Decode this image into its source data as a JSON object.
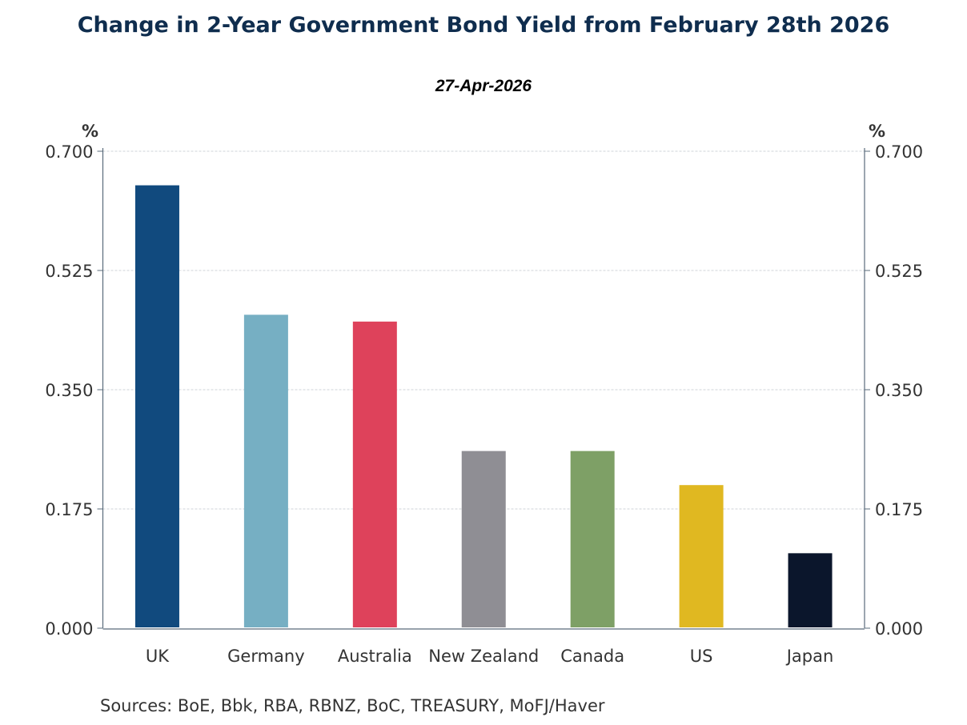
{
  "chart_data": {
    "type": "bar",
    "title": "Change in 2-Year Government Bond Yield from February 28th 2026",
    "subtitle": "27-Apr-2026",
    "ylabel_left": "%",
    "ylabel_right": "%",
    "xlabel": "",
    "ylim": [
      0,
      0.7
    ],
    "yticks": [
      "0.000",
      "0.175",
      "0.350",
      "0.525",
      "0.700"
    ],
    "grid": true,
    "categories": [
      "UK",
      "Germany",
      "Australia",
      "New Zealand",
      "Canada",
      "US",
      "Japan"
    ],
    "values": [
      0.65,
      0.46,
      0.45,
      0.26,
      0.26,
      0.21,
      0.11
    ],
    "colors": [
      "#114a7e",
      "#76afc3",
      "#de425b",
      "#8f8e94",
      "#7ea066",
      "#e0b821",
      "#0b162c"
    ],
    "source": "Sources:  BoE, Bbk, RBA, RBNZ, BoC, TREASURY, MoFJ/Haver"
  }
}
